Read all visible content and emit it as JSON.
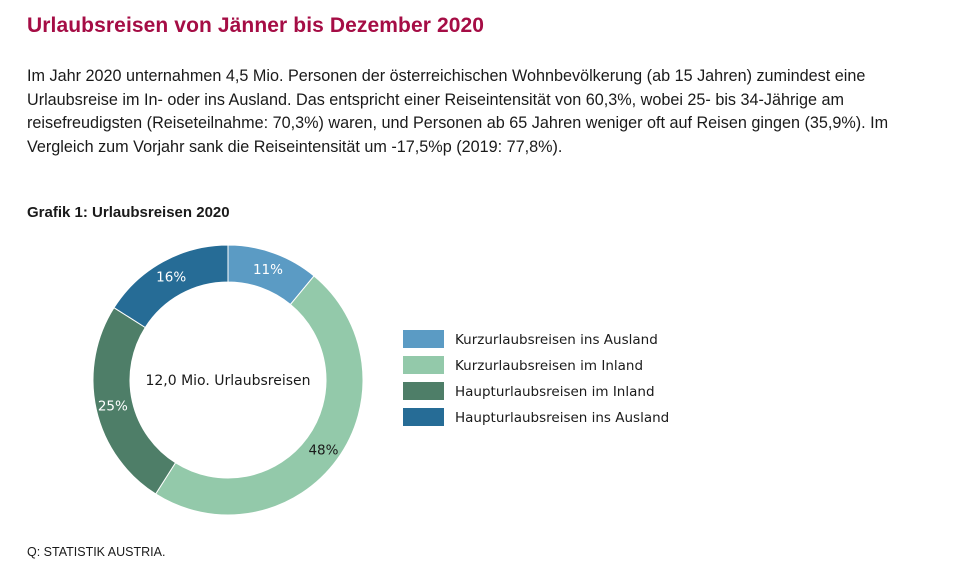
{
  "header": {
    "title": "Urlaubsreisen von Jänner bis Dezember 2020",
    "intro": "Im Jahr 2020 unternahmen 4,5 Mio. Personen der österreichischen Wohnbevölkerung (ab 15 Jahren) zumindest eine Urlaubsreise im In- oder ins Ausland. Das entspricht einer Reiseintensität von 60,3%, wobei 25- bis 34-Jährige am reisefreudigsten (Reiseteilnahme: 70,3%) waren, und Personen ab 65 Jahren weniger oft auf Reisen gingen (35,9%). Im Vergleich zum Vorjahr sank die Reiseintensität um -17,5%p (2019: 77,8%).",
    "title_color": "#a50d45"
  },
  "chart_data": {
    "type": "pie",
    "donut": true,
    "title": "Grafik 1: Urlaubsreisen 2020",
    "center_label": "12,0 Mio. Urlaubsreisen",
    "legend_position": "right",
    "slices": [
      {
        "name": "Kurzurlaubsreisen ins Ausland",
        "value": 11,
        "label": "11%",
        "color": "#5b9bc4",
        "label_color": "#ffffff"
      },
      {
        "name": "Kurzurlaubsreisen im Inland",
        "value": 48,
        "label": "48%",
        "color": "#93c9aa",
        "label_color": "#1a1a1a"
      },
      {
        "name": "Haupturlaubsreisen im Inland",
        "value": 25,
        "label": "25%",
        "color": "#4e7e68",
        "label_color": "#ffffff"
      },
      {
        "name": "Haupturlaubsreisen ins Ausland",
        "value": 16,
        "label": "16%",
        "color": "#266c96",
        "label_color": "#ffffff"
      }
    ]
  },
  "footer": {
    "source": "Q: STATISTIK AUSTRIA."
  }
}
